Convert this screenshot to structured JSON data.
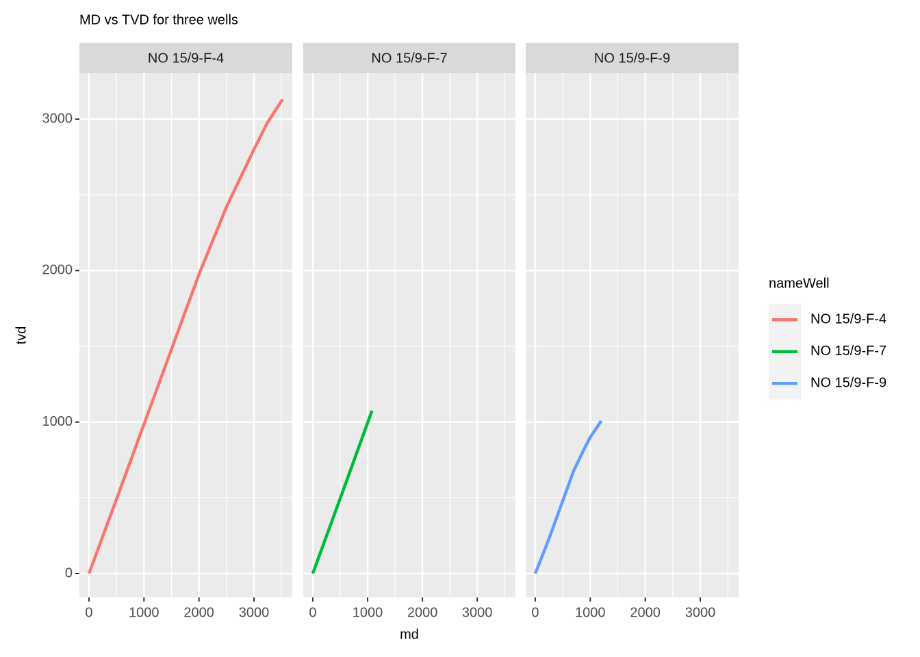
{
  "chart_data": {
    "type": "line",
    "title": "MD vs TVD for three wells",
    "x_label": "md",
    "y_label": "tvd",
    "legend_title": "nameWell",
    "xlim": [
      -174,
      3697
    ],
    "ylim": [
      -158,
      3303
    ],
    "xticks": [
      0,
      1000,
      2000,
      3000
    ],
    "yticks": [
      0,
      1000,
      2000,
      3000
    ],
    "grid": true,
    "minor_grid": true,
    "legend_position": "right",
    "series": [
      {
        "name": "NO 15/9-F-4",
        "color": "#F8766D",
        "x": [
          0,
          500,
          1000,
          1500,
          2000,
          2500,
          3000,
          3250,
          3520
        ],
        "values": [
          0,
          490,
          985,
          1480,
          1975,
          2420,
          2800,
          2980,
          3130
        ]
      },
      {
        "name": "NO 15/9-F-7",
        "color": "#00BA38",
        "x": [
          0,
          540,
          1080
        ],
        "values": [
          0,
          535,
          1075
        ]
      },
      {
        "name": "NO 15/9-F-9",
        "color": "#619CFF",
        "x": [
          0,
          250,
          500,
          700,
          900,
          1000,
          1200
        ],
        "values": [
          0,
          230,
          480,
          680,
          830,
          900,
          1008
        ]
      }
    ]
  }
}
